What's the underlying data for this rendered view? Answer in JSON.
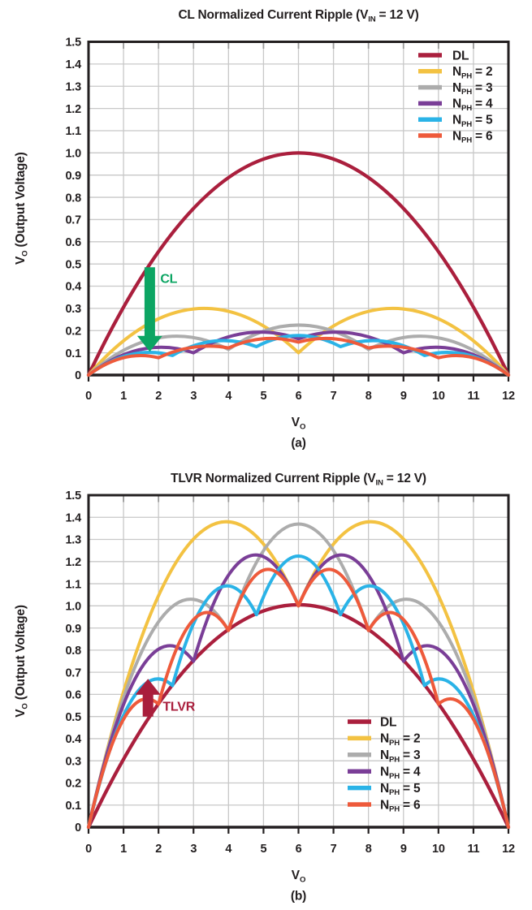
{
  "chart_data": [
    {
      "id": "a",
      "type": "line",
      "title_parts": [
        {
          "t": "CL Normalized Current Ripple (V"
        },
        {
          "t": "IN",
          "sub": true
        },
        {
          "t": " = 12 V)"
        }
      ],
      "caption": "(a)",
      "x_axis": {
        "label_parts": [
          {
            "t": "V"
          },
          {
            "t": "O",
            "sub": true
          }
        ],
        "min": 0,
        "max": 12,
        "ticks": [
          "0",
          "1",
          "2",
          "3",
          "4",
          "5",
          "6",
          "7",
          "8",
          "9",
          "10",
          "11",
          "12"
        ]
      },
      "y_axis": {
        "label_parts": [
          {
            "t": "V"
          },
          {
            "t": "O",
            "sub": true
          },
          {
            "t": " (Output Voltage)"
          }
        ],
        "min": 0,
        "max": 1.5,
        "ticks": [
          "0",
          "0.1",
          "0.2",
          "0.3",
          "0.4",
          "0.5",
          "0.6",
          "0.7",
          "0.8",
          "0.9",
          "1.0",
          "1.1",
          "1.2",
          "1.3",
          "1.4",
          "1.5"
        ]
      },
      "grid": true,
      "legend_position": "top-right",
      "series": [
        {
          "name": "DL",
          "label_parts": [
            {
              "t": "DL"
            }
          ],
          "color": "#AA1F3D",
          "x": [
            0,
            12
          ],
          "y": [
            0,
            0
          ],
          "peaks": [
            1.0
          ]
        },
        {
          "name": "NPH=2",
          "label_parts": [
            {
              "t": "N"
            },
            {
              "t": "PH",
              "sub": true
            },
            {
              "t": " = 2"
            }
          ],
          "color": "#F3C242",
          "x": [
            0,
            6,
            12
          ],
          "y": [
            0,
            0.1,
            0
          ],
          "peaks": [
            0.3,
            0.3
          ]
        },
        {
          "name": "NPH=3",
          "label_parts": [
            {
              "t": "N"
            },
            {
              "t": "PH",
              "sub": true
            },
            {
              "t": " = 3"
            }
          ],
          "color": "#ACACAC",
          "x": [
            0,
            4,
            8,
            12
          ],
          "y": [
            0,
            0.115,
            0.115,
            0
          ],
          "peaks": [
            0.175,
            0.225,
            0.175
          ]
        },
        {
          "name": "NPH=4",
          "label_parts": [
            {
              "t": "N"
            },
            {
              "t": "PH",
              "sub": true
            },
            {
              "t": " = 4"
            }
          ],
          "color": "#7A3E97",
          "x": [
            0,
            3,
            6,
            9,
            12
          ],
          "y": [
            0,
            0.1,
            0.163,
            0.1,
            0
          ],
          "peaks": [
            0.125,
            0.193,
            0.193,
            0.125
          ]
        },
        {
          "name": "NPH=5",
          "label_parts": [
            {
              "t": "N"
            },
            {
              "t": "PH",
              "sub": true
            },
            {
              "t": " = 5"
            }
          ],
          "color": "#2AB3E7",
          "x": [
            0,
            2.4,
            4.8,
            7.2,
            9.6,
            12
          ],
          "y": [
            0,
            0.088,
            0.128,
            0.128,
            0.088,
            0
          ],
          "peaks": [
            0.102,
            0.155,
            0.178,
            0.155,
            0.102
          ]
        },
        {
          "name": "NPH=6",
          "label_parts": [
            {
              "t": "N"
            },
            {
              "t": "PH",
              "sub": true
            },
            {
              "t": " = 6"
            }
          ],
          "color": "#EE5A3B",
          "x": [
            0,
            2,
            4,
            6,
            8,
            10,
            12
          ],
          "y": [
            0,
            0.078,
            0.122,
            0.148,
            0.122,
            0.078,
            0
          ],
          "peaks": [
            0.088,
            0.13,
            0.165,
            0.165,
            0.13,
            0.088
          ]
        }
      ],
      "annotation": {
        "label": "CL",
        "color": "#0CA563",
        "direction": "down",
        "x": 1.75,
        "y_start": 0.485,
        "y_end": 0.105,
        "label_x": 2.05,
        "label_y": 0.435
      }
    },
    {
      "id": "b",
      "type": "line",
      "title_parts": [
        {
          "t": "TLVR Normalized Current Ripple (V"
        },
        {
          "t": "IN",
          "sub": true
        },
        {
          "t": " = 12 V)"
        }
      ],
      "caption": "(b)",
      "x_axis": {
        "label_parts": [
          {
            "t": "V"
          },
          {
            "t": "O",
            "sub": true
          }
        ],
        "min": 0,
        "max": 12,
        "ticks": [
          "0",
          "1",
          "2",
          "3",
          "4",
          "5",
          "6",
          "7",
          "8",
          "9",
          "10",
          "11",
          "12"
        ]
      },
      "y_axis": {
        "label_parts": [
          {
            "t": "V"
          },
          {
            "t": "O",
            "sub": true
          },
          {
            "t": " (Output Voltage)"
          }
        ],
        "min": 0,
        "max": 1.5,
        "ticks": [
          "0",
          "0.1",
          "0.2",
          "0.3",
          "0.4",
          "0.5",
          "0.6",
          "0.7",
          "0.8",
          "0.9",
          "1.0",
          "1.1",
          "1.2",
          "1.3",
          "1.4",
          "1.5"
        ]
      },
      "grid": true,
      "legend_position": "mid-right",
      "series": [
        {
          "name": "DL",
          "label_parts": [
            {
              "t": "DL"
            }
          ],
          "color": "#AA1F3D",
          "x": [
            0,
            12
          ],
          "y": [
            0,
            0
          ],
          "peaks": [
            1.005
          ]
        },
        {
          "name": "NPH=2",
          "label_parts": [
            {
              "t": "N"
            },
            {
              "t": "PH",
              "sub": true
            },
            {
              "t": " = 2"
            }
          ],
          "color": "#F3C242",
          "x": [
            0,
            6,
            12
          ],
          "y": [
            0,
            1.0,
            0
          ],
          "peaks": [
            1.38,
            1.38
          ]
        },
        {
          "name": "NPH=3",
          "label_parts": [
            {
              "t": "N"
            },
            {
              "t": "PH",
              "sub": true
            },
            {
              "t": " = 3"
            }
          ],
          "color": "#ACACAC",
          "x": [
            0,
            4,
            8,
            12
          ],
          "y": [
            0,
            0.889,
            0.889,
            0
          ],
          "peaks": [
            1.03,
            1.37,
            1.03
          ]
        },
        {
          "name": "NPH=4",
          "label_parts": [
            {
              "t": "N"
            },
            {
              "t": "PH",
              "sub": true
            },
            {
              "t": " = 4"
            }
          ],
          "color": "#7A3E97",
          "x": [
            0,
            3,
            6,
            9,
            12
          ],
          "y": [
            0,
            0.75,
            1.0,
            0.75,
            0
          ],
          "peaks": [
            0.82,
            1.23,
            1.23,
            0.82
          ]
        },
        {
          "name": "NPH=5",
          "label_parts": [
            {
              "t": "N"
            },
            {
              "t": "PH",
              "sub": true
            },
            {
              "t": " = 5"
            }
          ],
          "color": "#2AB3E7",
          "x": [
            0,
            2.4,
            4.8,
            7.2,
            9.6,
            12
          ],
          "y": [
            0,
            0.64,
            0.96,
            0.96,
            0.64,
            0
          ],
          "peaks": [
            0.67,
            1.09,
            1.225,
            1.09,
            0.67
          ]
        },
        {
          "name": "NPH=6",
          "label_parts": [
            {
              "t": "N"
            },
            {
              "t": "PH",
              "sub": true
            },
            {
              "t": " = 6"
            }
          ],
          "color": "#EE5A3B",
          "x": [
            0,
            2,
            4,
            6,
            8,
            10,
            12
          ],
          "y": [
            0,
            0.556,
            0.889,
            1.0,
            0.889,
            0.556,
            0
          ],
          "peaks": [
            0.58,
            0.97,
            1.165,
            1.165,
            0.97,
            0.58
          ]
        }
      ],
      "annotation": {
        "label": "TLVR",
        "color": "#A91E3C",
        "direction": "up",
        "x": 1.7,
        "y_start": 0.5,
        "y_end": 0.67,
        "label_x": 2.12,
        "label_y": 0.546
      }
    }
  ]
}
